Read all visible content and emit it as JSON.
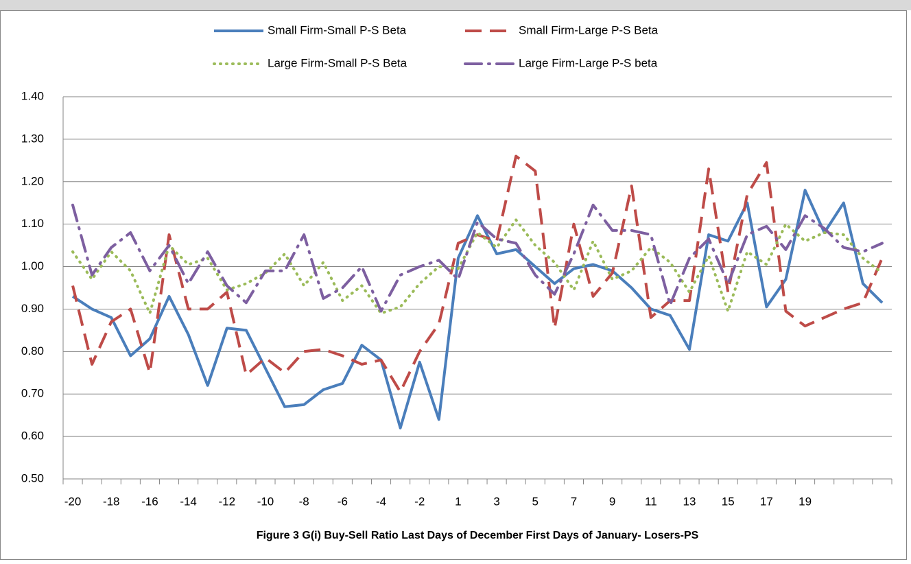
{
  "chart_data": {
    "type": "line",
    "title": "Figure 3 G(i) Buy-Sell Ratio Last Days of December First Days of January- Losers-PS",
    "categories": [
      "-20",
      null,
      "-18",
      null,
      "-16",
      null,
      "-14",
      null,
      "-12",
      null,
      "-10",
      null,
      "-8",
      null,
      "-6",
      null,
      "-4",
      null,
      "-2",
      null,
      "1",
      null,
      "3",
      null,
      "5",
      null,
      "7",
      null,
      "9",
      null,
      "11",
      null,
      "13",
      null,
      "15",
      null,
      "17",
      null,
      "19",
      null,
      null,
      null,
      null
    ],
    "series": [
      {
        "name": "Small Firm-Small P-S Beta",
        "color": "#4a7ebb",
        "dash": "solid",
        "values": [
          0.93,
          0.9,
          0.88,
          0.79,
          0.83,
          0.93,
          0.84,
          0.72,
          0.855,
          0.85,
          0.76,
          0.67,
          0.675,
          0.71,
          0.725,
          0.815,
          0.78,
          0.62,
          0.775,
          0.64,
          1.02,
          1.12,
          1.03,
          1.04,
          1.0,
          0.96,
          0.995,
          1.005,
          0.99,
          0.95,
          0.9,
          0.885,
          0.805,
          1.075,
          1.06,
          1.15,
          0.905,
          0.97,
          1.18,
          1.08,
          1.15,
          0.96,
          0.915
        ]
      },
      {
        "name": "Small Firm-Large P-S Beta",
        "color": "#be4b48",
        "dash": "dash",
        "values": [
          0.955,
          0.77,
          0.87,
          0.9,
          0.75,
          1.075,
          0.9,
          0.9,
          0.94,
          0.745,
          0.785,
          0.75,
          0.8,
          0.805,
          0.79,
          0.77,
          0.78,
          0.705,
          0.8,
          0.865,
          1.055,
          1.075,
          1.06,
          1.26,
          1.225,
          0.855,
          1.1,
          0.93,
          0.985,
          1.19,
          0.88,
          0.92,
          0.92,
          1.23,
          0.94,
          1.17,
          1.245,
          0.895,
          0.86,
          0.88,
          0.9,
          0.915,
          1.02
        ]
      },
      {
        "name": "Large Firm-Small P-S Beta",
        "color": "#9bbb59",
        "dash": "dot",
        "values": [
          1.035,
          0.97,
          1.035,
          0.99,
          0.89,
          1.05,
          1.005,
          1.02,
          0.945,
          0.96,
          0.985,
          1.03,
          0.955,
          1.01,
          0.92,
          0.955,
          0.89,
          0.905,
          0.96,
          1.0,
          0.995,
          1.08,
          1.045,
          1.11,
          1.05,
          1.01,
          0.945,
          1.06,
          0.97,
          0.99,
          1.045,
          1.01,
          0.94,
          1.025,
          0.895,
          1.035,
          1.005,
          1.1,
          1.06,
          1.08,
          1.075,
          1.02,
          0.985
        ]
      },
      {
        "name": "Large Firm-Large P-S beta",
        "color": "#7d5fa0",
        "dash": "dashdot",
        "values": [
          1.145,
          0.98,
          1.045,
          1.08,
          0.99,
          1.05,
          0.96,
          1.035,
          0.955,
          0.915,
          0.99,
          0.99,
          1.075,
          0.925,
          0.95,
          1.0,
          0.895,
          0.98,
          1.0,
          1.015,
          0.97,
          1.105,
          1.065,
          1.055,
          0.98,
          0.935,
          1.03,
          1.145,
          1.085,
          1.085,
          1.075,
          0.91,
          1.02,
          1.065,
          0.96,
          1.075,
          1.095,
          1.04,
          1.12,
          1.09,
          1.045,
          1.035,
          1.055
        ]
      }
    ],
    "ylim": [
      0.5,
      1.4
    ],
    "yticks": [
      {
        "value": 0.5,
        "label": "0.50"
      },
      {
        "value": 0.6,
        "label": "0.60"
      },
      {
        "value": 0.7,
        "label": "0.70"
      },
      {
        "value": 0.8,
        "label": "0.80"
      },
      {
        "value": 0.9,
        "label": "0.90"
      },
      {
        "value": 1.0,
        "label": "1.00"
      },
      {
        "value": 1.1,
        "label": "1.10"
      },
      {
        "value": 1.2,
        "label": "1.20"
      },
      {
        "value": 1.3,
        "label": "1.30"
      },
      {
        "value": 1.4,
        "label": "1.40"
      }
    ],
    "grid": true,
    "legend": "top"
  }
}
